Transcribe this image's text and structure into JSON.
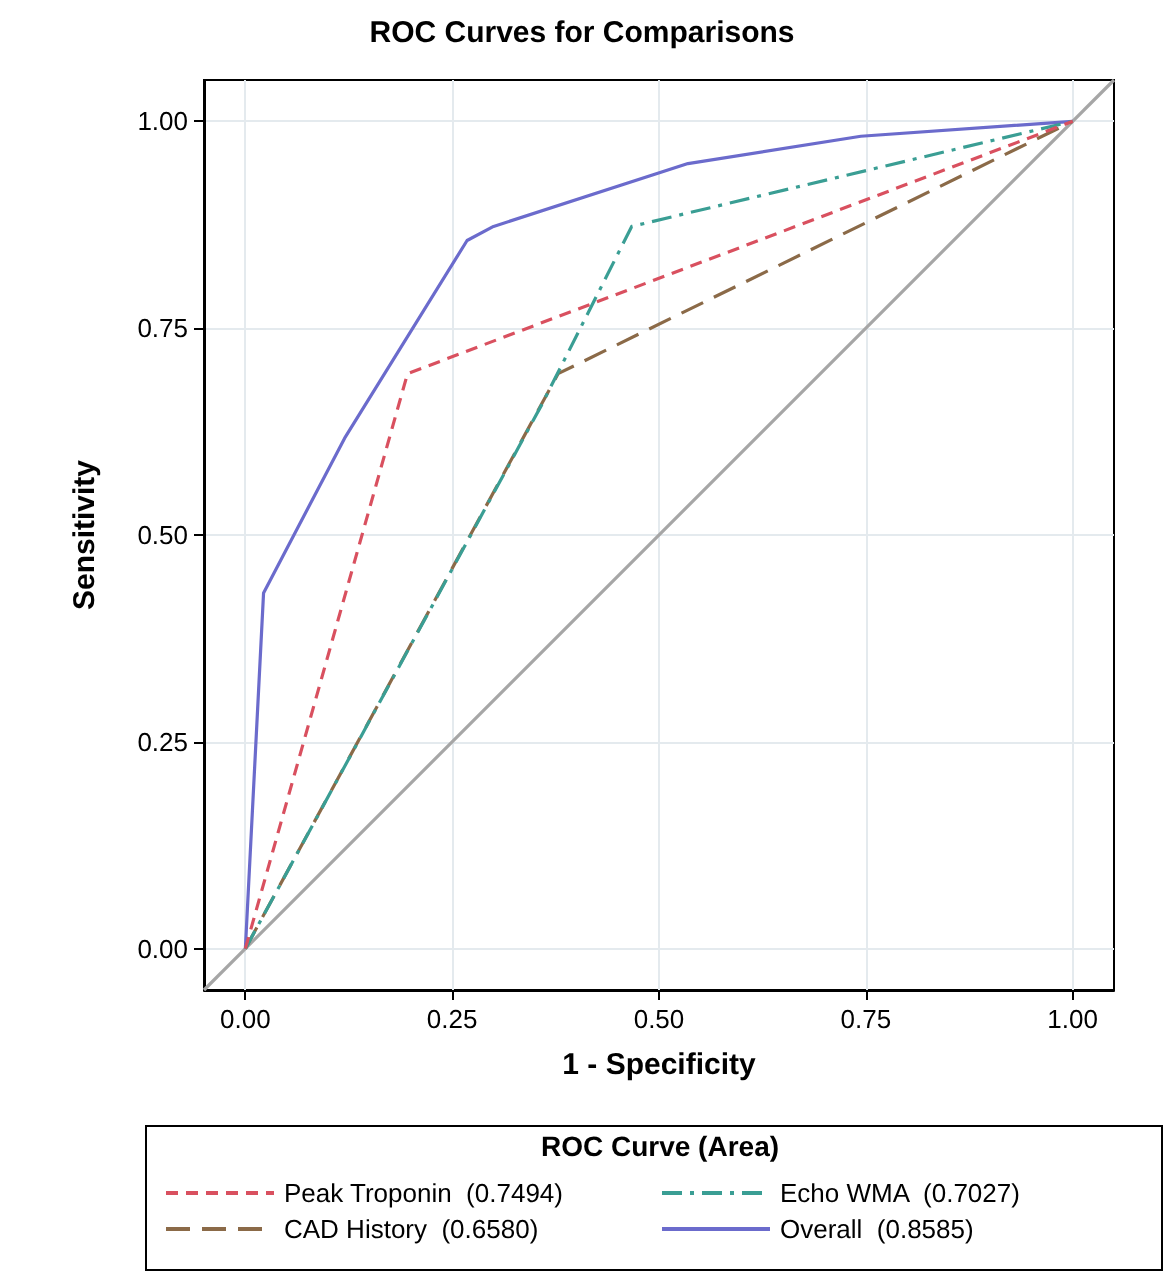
{
  "chart_data": {
    "type": "line",
    "title": "ROC Curves for Comparisons",
    "xlabel": "1 - Specificity",
    "ylabel": "Sensitivity",
    "legend_title": "ROC Curve (Area)",
    "legend": "bottom",
    "grid": true,
    "marker": "none",
    "xlim": [
      -0.05,
      1.05
    ],
    "ylim": [
      -0.05,
      1.05
    ],
    "xticks": [
      {
        "value": 0,
        "label": "0.00"
      },
      {
        "value": 0.25,
        "label": "0.25"
      },
      {
        "value": 0.5,
        "label": "0.50"
      },
      {
        "value": 0.75,
        "label": "0.75"
      },
      {
        "value": 1,
        "label": "1.00"
      }
    ],
    "yticks": [
      {
        "value": 0,
        "label": "0.00"
      },
      {
        "value": 0.25,
        "label": "0.25"
      },
      {
        "value": 0.5,
        "label": "0.50"
      },
      {
        "value": 0.75,
        "label": "0.75"
      },
      {
        "value": 1,
        "label": "1.00"
      }
    ],
    "series": [
      {
        "name": "Peak Troponin  (0.7494)",
        "color": "#d9505f",
        "line_style": "dashed",
        "x": [
          0,
          0.196,
          1
        ],
        "values": [
          0,
          0.695,
          1
        ]
      },
      {
        "name": "Echo WMA  (0.7027)",
        "color": "#3a9e94",
        "line_style": "dashdot",
        "x": [
          0,
          0.358,
          0.467,
          1
        ],
        "values": [
          0,
          0.657,
          0.873,
          1
        ]
      },
      {
        "name": "CAD History  (0.6580)",
        "color": "#8b6a48",
        "line_style": "longdash",
        "x": [
          0,
          0.378,
          1
        ],
        "values": [
          0,
          0.695,
          1
        ]
      },
      {
        "name": "Overall  (0.8585)",
        "color": "#6b6bcc",
        "line_style": "solid",
        "x": [
          0,
          0.022,
          0.12,
          0.268,
          0.3,
          0.535,
          0.744,
          1
        ],
        "values": [
          0,
          0.43,
          0.617,
          0.856,
          0.873,
          0.949,
          0.982,
          1
        ]
      },
      {
        "color": "#a6a6a6",
        "line_style": "solid",
        "x": [
          -0.05,
          1.05
        ],
        "values": [
          -0.05,
          1.05
        ]
      }
    ]
  }
}
